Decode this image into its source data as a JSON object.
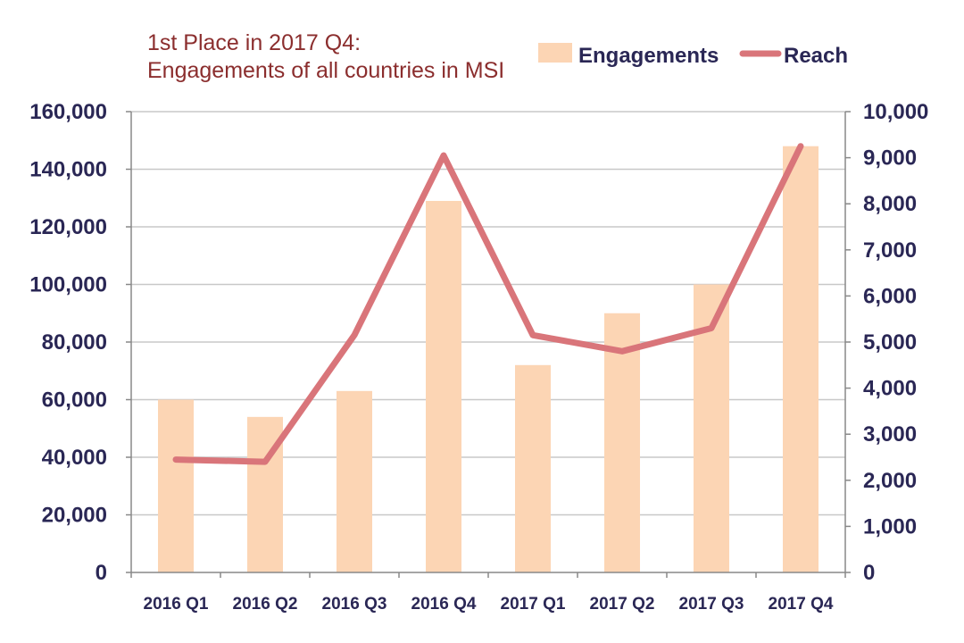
{
  "chart_data": {
    "type": "bar",
    "title_lines": [
      "1st Place in 2017 Q4:",
      "Engagements of all countries in MSI"
    ],
    "categories": [
      "2016 Q1",
      "2016 Q2",
      "2016 Q3",
      "2016 Q4",
      "2017 Q1",
      "2017 Q2",
      "2017 Q3",
      "2017 Q4"
    ],
    "series": [
      {
        "name": "Engagements",
        "type": "bar",
        "axis": "left",
        "color": "#fcd5b4",
        "values": [
          60000,
          54000,
          63000,
          129000,
          72000,
          90000,
          100000,
          148000
        ]
      },
      {
        "name": "Reach",
        "type": "line",
        "axis": "right",
        "color": "#d9757a",
        "values": [
          2450,
          2400,
          5150,
          9050,
          5150,
          4800,
          5300,
          9250
        ]
      }
    ],
    "y_left": {
      "min": 0,
      "max": 160000,
      "ticks": [
        0,
        20000,
        40000,
        60000,
        80000,
        100000,
        120000,
        140000,
        160000
      ],
      "tick_labels": [
        "0",
        "20,000",
        "40,000",
        "60,000",
        "80,000",
        "100,000",
        "120,000",
        "140,000",
        "160,000"
      ]
    },
    "y_right": {
      "min": 0,
      "max": 10000,
      "ticks": [
        0,
        1000,
        2000,
        3000,
        4000,
        5000,
        6000,
        7000,
        8000,
        9000,
        10000
      ],
      "tick_labels": [
        "0",
        "1,000",
        "2,000",
        "3,000",
        "4,000",
        "5,000",
        "6,000",
        "7,000",
        "8,000",
        "9,000",
        "10,000"
      ]
    },
    "grid": true,
    "legend_position": "top-right",
    "gridline_color": "#c8c8c8",
    "axis_color": "#888888"
  }
}
